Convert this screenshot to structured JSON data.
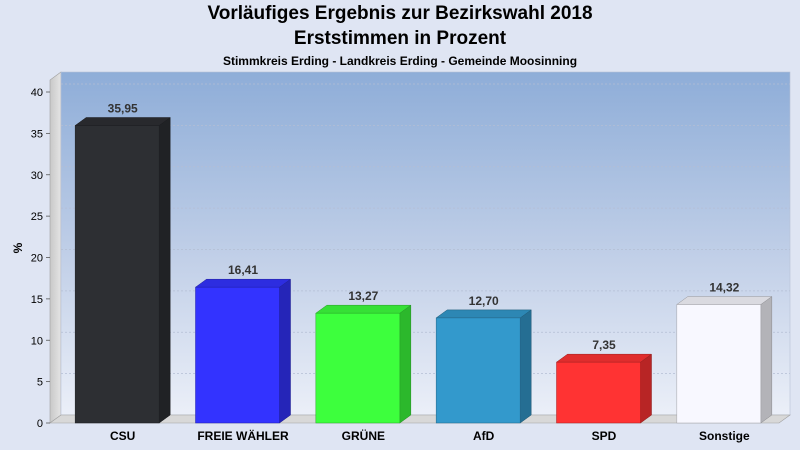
{
  "chart_data": {
    "type": "bar",
    "title": "Vorläufiges Ergebnis zur Bezirkswahl 2018",
    "subtitle": "Erststimmen in Prozent",
    "subtitle2": "Stimmkreis Erding - Landkreis Erding - Gemeinde Moosinning",
    "xlabel": "",
    "ylabel": "%",
    "ylim": [
      0,
      40
    ],
    "yticks": [
      0,
      5,
      10,
      15,
      20,
      25,
      30,
      35,
      40
    ],
    "grid": true,
    "categories": [
      "CSU",
      "FREIE WÄHLER",
      "GRÜNE",
      "AfD",
      "SPD",
      "Sonstige"
    ],
    "values": [
      35.95,
      16.41,
      13.27,
      12.7,
      7.35,
      14.32
    ],
    "value_labels": [
      "35,95",
      "16,41",
      "13,27",
      "12,70",
      "7,35",
      "14,32"
    ],
    "colors": [
      "#2d2f33",
      "#3333ff",
      "#3dff3d",
      "#3399cc",
      "#ff3333",
      "#f8f8ff"
    ]
  }
}
